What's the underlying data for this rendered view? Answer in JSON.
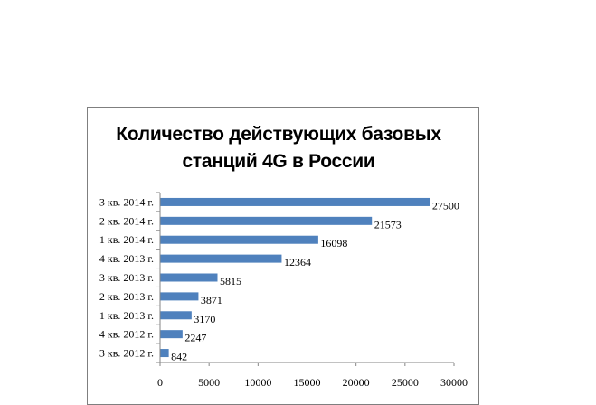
{
  "chart_data": {
    "type": "bar",
    "orientation": "horizontal",
    "title": "Количество действующих базовых станций 4G в России",
    "title_lines": [
      "Количество действующих базовых",
      "станций 4G в России"
    ],
    "categories": [
      "3 кв. 2014 г.",
      "2 кв. 2014 г.",
      "1 кв. 2014 г.",
      "4 кв. 2013 г.",
      "3 кв. 2013 г.",
      "2 кв. 2013 г.",
      "1 кв. 2013 г.",
      "4 кв. 2012 г.",
      "3 кв. 2012 г."
    ],
    "values": [
      27500,
      21573,
      16098,
      12364,
      5815,
      3871,
      3170,
      2247,
      842
    ],
    "value_labels": [
      "27500",
      "21573",
      "16098",
      "12364",
      "5815",
      "3871",
      "3170",
      "2247",
      "842"
    ],
    "xlim": [
      0,
      30000
    ],
    "xticks": [
      "0",
      "5000",
      "10000",
      "15000",
      "20000",
      "25000",
      "30000"
    ],
    "xtick_values": [
      0,
      5000,
      10000,
      15000,
      20000,
      25000,
      30000
    ],
    "grid": false,
    "legend": "none",
    "bar_color": "#4f81bd"
  }
}
